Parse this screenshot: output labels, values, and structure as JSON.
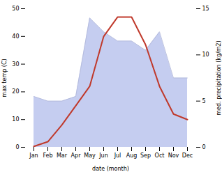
{
  "chart_data": {
    "type": "line",
    "categories": [
      "Jan",
      "Feb",
      "Mar",
      "Apr",
      "May",
      "Jun",
      "Jul",
      "Aug",
      "Sep",
      "Oct",
      "Nov",
      "Dec"
    ],
    "xlabel": "date (month)",
    "ylabel": "max temp (C)",
    "y2label": "med. precipitation (kg/m2)",
    "ylim": [
      0,
      50
    ],
    "yticks": [
      0,
      10,
      20,
      30,
      40,
      50
    ],
    "y2lim": [
      0,
      15
    ],
    "y2ticks": [
      0,
      5,
      10,
      15
    ],
    "grid": false,
    "series": [
      {
        "type": "area",
        "axis": "y2",
        "color": "#c5cdf0",
        "values": [
          5.5,
          5.0,
          5.0,
          5.5,
          14.0,
          12.5,
          11.5,
          11.5,
          10.5,
          12.5,
          7.5,
          7.5
        ]
      },
      {
        "type": "line",
        "color": "#c0392b",
        "values": [
          0.3,
          2.0,
          8.0,
          15.0,
          22.0,
          40.0,
          47.0,
          47.0,
          37.0,
          22.0,
          12.0,
          10.0
        ]
      }
    ]
  }
}
